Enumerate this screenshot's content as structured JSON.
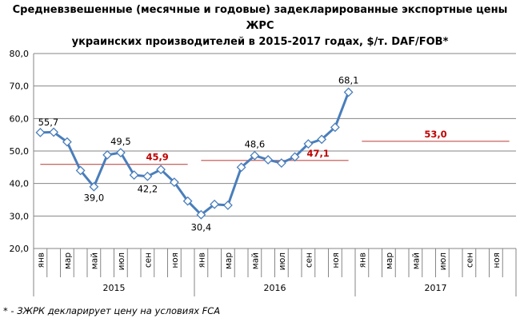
{
  "title_lines": [
    "Средневзвешенные (месячные и годовые) задекларированные экспортные цены ЖРС",
    "украинских производителей в 2015-2017 годах, $/т. DAF/FOB*"
  ],
  "footnote": "* - ЗЖРК декларирует цену на условиях FCA",
  "colors": {
    "line": "#4a7ebb",
    "average": "#c0504d",
    "average_label": "#c00000",
    "grid": "#868686"
  },
  "chart_data": {
    "type": "line",
    "title": "Средневзвешенные (месячные и годовые) задекларированные экспортные цены ЖРС украинских производителей в 2015-2017 годах, $/т. DAF/FOB*",
    "ylim": [
      20,
      80
    ],
    "yticks": [
      "20,0",
      "30,0",
      "40,0",
      "50,0",
      "60,0",
      "70,0",
      "80,0"
    ],
    "grid": "horizontal",
    "month_labels": [
      "янв",
      "",
      "мар",
      "",
      "май",
      "",
      "июл",
      "",
      "сен",
      "",
      "ноя",
      ""
    ],
    "years": [
      "2015",
      "2016",
      "2017"
    ],
    "series": [
      {
        "values": [
          55.7,
          55.8,
          52.8,
          44.0,
          39.0,
          48.8,
          49.5,
          42.6,
          42.2,
          44.3,
          40.4,
          34.6,
          30.4,
          33.6,
          33.3,
          45.0,
          48.6,
          47.3,
          46.3,
          48.2,
          52.2,
          53.6,
          57.3,
          68.1,
          null,
          null,
          null,
          null,
          null,
          null,
          null,
          null,
          null,
          null,
          null,
          null
        ]
      }
    ],
    "point_labels": [
      {
        "index": 0,
        "text": "55,7"
      },
      {
        "index": 4,
        "text": "39,0"
      },
      {
        "index": 6,
        "text": "49,5"
      },
      {
        "index": 8,
        "text": "42,2"
      },
      {
        "index": 12,
        "text": "30,4"
      },
      {
        "index": 16,
        "text": "48,6"
      },
      {
        "index": 23,
        "text": "68,1"
      }
    ],
    "annual_averages": [
      {
        "year": "2015",
        "value": 45.9,
        "label": "45,9"
      },
      {
        "year": "2016",
        "value": 47.1,
        "label": "47,1"
      },
      {
        "year": "2017",
        "value": 53.0,
        "label": "53,0"
      }
    ]
  }
}
